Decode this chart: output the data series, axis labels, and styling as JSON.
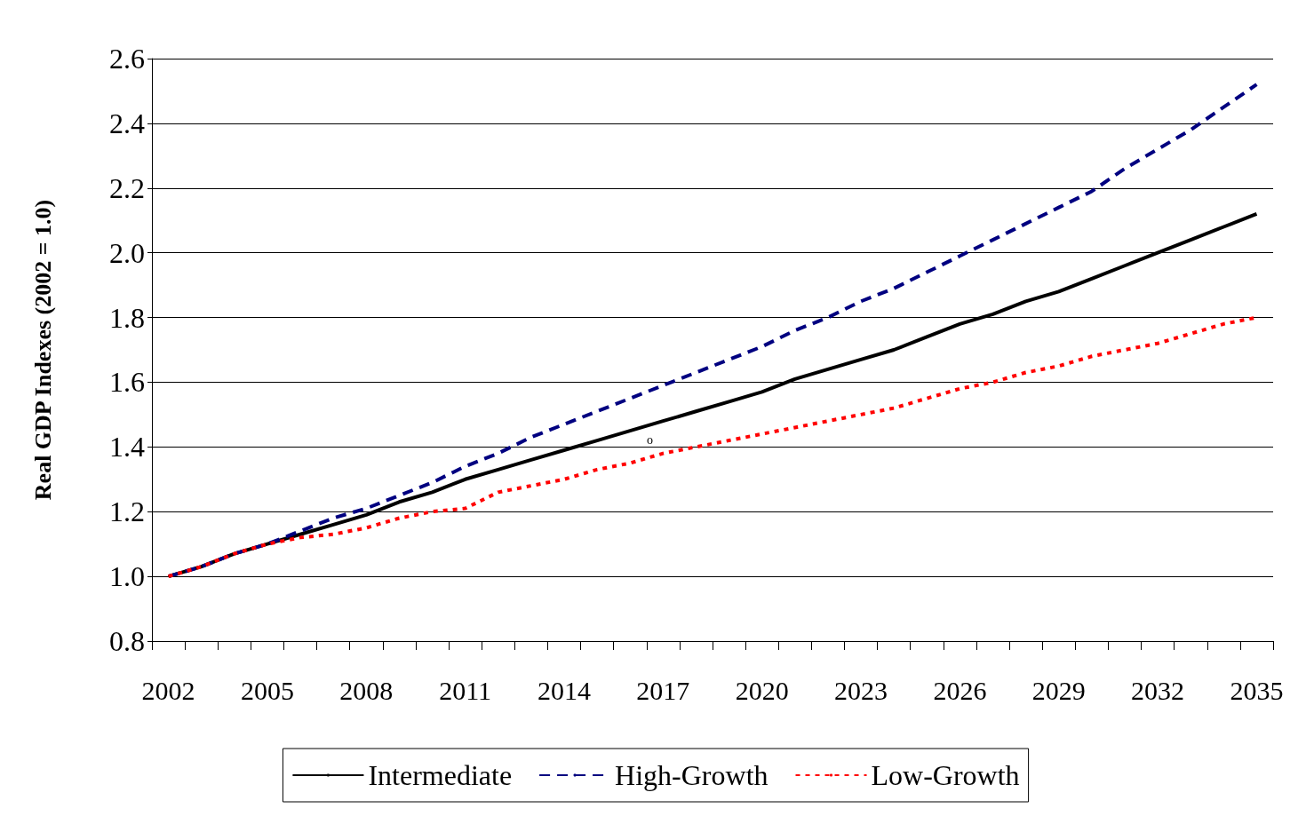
{
  "chart_data": {
    "type": "line",
    "ylabel": "Real GDP Indexes (2002 = 1.0)",
    "categories": [
      "2002",
      null,
      null,
      "2005",
      null,
      null,
      "2008",
      null,
      null,
      "2011",
      null,
      null,
      "2014",
      null,
      null,
      "2017",
      null,
      null,
      "2020",
      null,
      null,
      "2023",
      null,
      null,
      "2026",
      null,
      null,
      "2029",
      null,
      null,
      "2032",
      null,
      null,
      "2035"
    ],
    "series": [
      {
        "name": "Intermediate",
        "color": "#000000",
        "line_style": "solid",
        "values": [
          1.0,
          1.03,
          1.07,
          1.1,
          1.13,
          1.16,
          1.19,
          1.23,
          1.26,
          1.3,
          1.33,
          1.36,
          1.39,
          1.42,
          1.45,
          1.48,
          1.51,
          1.54,
          1.57,
          1.61,
          1.64,
          1.67,
          1.7,
          1.74,
          1.78,
          1.81,
          1.85,
          1.88,
          1.92,
          1.96,
          2.0,
          2.04,
          2.08,
          2.12
        ]
      },
      {
        "name": "High-Growth",
        "color": "#000080",
        "line_style": "dashed",
        "values": [
          1.0,
          1.03,
          1.07,
          1.1,
          1.14,
          1.18,
          1.21,
          1.25,
          1.29,
          1.34,
          1.38,
          1.43,
          1.47,
          1.51,
          1.55,
          1.59,
          1.63,
          1.67,
          1.71,
          1.76,
          1.8,
          1.85,
          1.89,
          1.94,
          1.99,
          2.04,
          2.09,
          2.14,
          2.19,
          2.26,
          2.32,
          2.38,
          2.45,
          2.52
        ]
      },
      {
        "name": "Low-Growth",
        "color": "#ff0000",
        "line_style": "dotted",
        "values": [
          1.0,
          1.03,
          1.07,
          1.1,
          1.12,
          1.13,
          1.15,
          1.18,
          1.2,
          1.21,
          1.26,
          1.28,
          1.3,
          1.33,
          1.35,
          1.38,
          1.4,
          1.42,
          1.44,
          1.46,
          1.48,
          1.5,
          1.52,
          1.55,
          1.58,
          1.6,
          1.63,
          1.65,
          1.68,
          1.7,
          1.72,
          1.75,
          1.78,
          1.8
        ]
      }
    ],
    "ylim": [
      0.8,
      2.6
    ],
    "yticks": [
      {
        "value": 0.8,
        "label": "0.8"
      },
      {
        "value": 1.0,
        "label": "1.0"
      },
      {
        "value": 1.2,
        "label": "1.2"
      },
      {
        "value": 1.4,
        "label": "1.4"
      },
      {
        "value": 1.6,
        "label": "1.6"
      },
      {
        "value": 1.8,
        "label": "1.8"
      },
      {
        "value": 2.0,
        "label": "2.0"
      },
      {
        "value": 2.2,
        "label": "2.2"
      },
      {
        "value": 2.4,
        "label": "2.4"
      },
      {
        "value": 2.6,
        "label": "2.6"
      }
    ],
    "grid": "y",
    "legend": "bottom",
    "marker": "none",
    "annotations": [
      "o"
    ]
  }
}
